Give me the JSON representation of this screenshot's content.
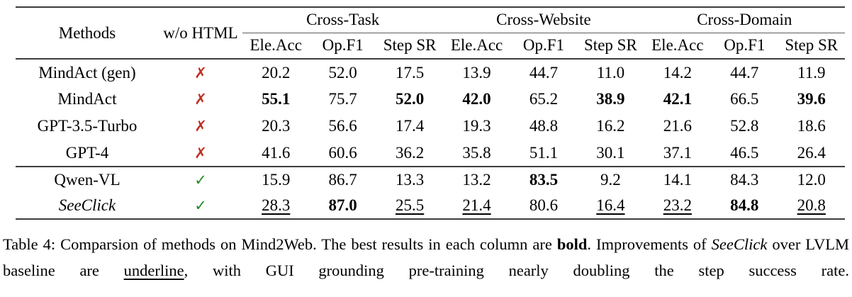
{
  "colors": {
    "rule": "#3d3d3d",
    "cmid": "#5e5e5e",
    "cross": "#bf2e1f",
    "check": "#228b22",
    "text": "#000000"
  },
  "table": {
    "header": {
      "methods": "Methods",
      "wo_html": "w/o HTML",
      "groups": [
        "Cross-Task",
        "Cross-Website",
        "Cross-Domain"
      ],
      "subcolumns": [
        "Ele.Acc",
        "Op.F1",
        "Step SR"
      ]
    },
    "symbols": {
      "cross": "✗",
      "check": "✓"
    },
    "sections": [
      {
        "rows": [
          {
            "method": "MindAct (gen)",
            "italic": false,
            "html": false,
            "cells": [
              "20.2",
              "52.0",
              "17.5",
              "13.9",
              "44.7",
              "11.0",
              "14.2",
              "44.7",
              "11.9"
            ],
            "bold": [],
            "underline": []
          },
          {
            "method": "MindAct",
            "italic": false,
            "html": false,
            "cells": [
              "55.1",
              "75.7",
              "52.0",
              "42.0",
              "65.2",
              "38.9",
              "42.1",
              "66.5",
              "39.6"
            ],
            "bold": [
              0,
              2,
              3,
              5,
              6,
              8
            ],
            "underline": []
          },
          {
            "method": "GPT-3.5-Turbo",
            "italic": false,
            "html": false,
            "cells": [
              "20.3",
              "56.6",
              "17.4",
              "19.3",
              "48.8",
              "16.2",
              "21.6",
              "52.8",
              "18.6"
            ],
            "bold": [],
            "underline": []
          },
          {
            "method": "GPT-4",
            "italic": false,
            "html": false,
            "cells": [
              "41.6",
              "60.6",
              "36.2",
              "35.8",
              "51.1",
              "30.1",
              "37.1",
              "46.5",
              "26.4"
            ],
            "bold": [],
            "underline": []
          }
        ]
      },
      {
        "rows": [
          {
            "method": "Qwen-VL",
            "italic": false,
            "html": true,
            "cells": [
              "15.9",
              "86.7",
              "13.3",
              "13.2",
              "83.5",
              "9.2",
              "14.1",
              "84.3",
              "12.0"
            ],
            "bold": [
              4
            ],
            "underline": []
          },
          {
            "method": "SeeClick",
            "italic": true,
            "html": true,
            "cells": [
              "28.3",
              "87.0",
              "25.5",
              "21.4",
              "80.6",
              "16.4",
              "23.2",
              "84.8",
              "20.8"
            ],
            "bold": [
              1,
              7
            ],
            "underline": [
              0,
              2,
              3,
              5,
              6,
              8
            ]
          }
        ]
      }
    ]
  },
  "caption": {
    "segments": [
      {
        "text": "Table 4: Comparsion of methods on Mind2Web. The best results in each column are "
      },
      {
        "text": "bold",
        "bold": true
      },
      {
        "text": ". Improvements of "
      },
      {
        "text": "SeeClick",
        "italic": true
      },
      {
        "text": " over LVLM baseline are "
      },
      {
        "text": "underline",
        "underline": true
      },
      {
        "text": ", with GUI grounding pre-training nearly doubling the step success rate."
      }
    ]
  }
}
